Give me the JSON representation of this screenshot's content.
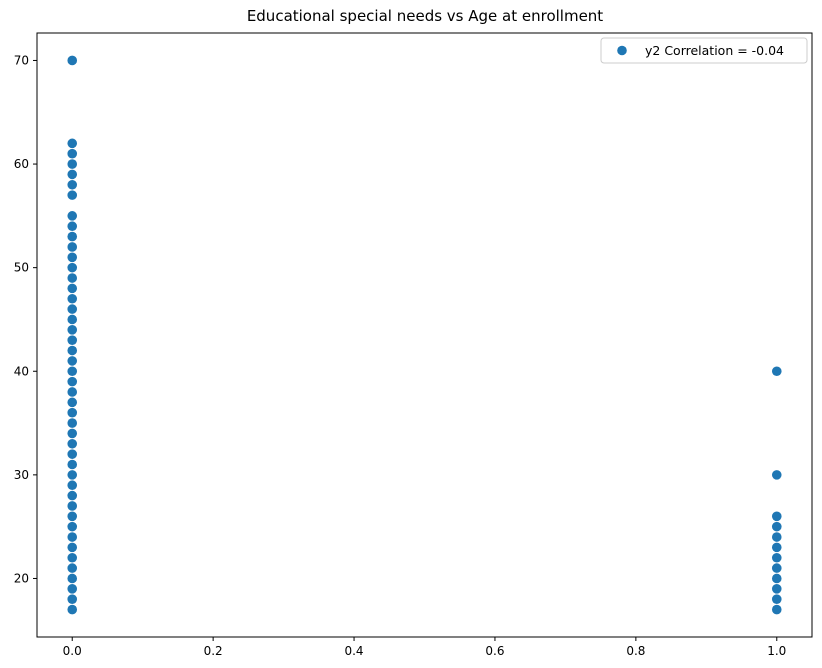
{
  "chart_data": {
    "type": "scatter",
    "title": "Educational special needs vs Age at enrollment",
    "xlabel": "",
    "ylabel": "",
    "xlim": [
      -0.05,
      1.05
    ],
    "ylim": [
      14.35,
      72.65
    ],
    "xticks": [
      0.0,
      0.2,
      0.4,
      0.6,
      0.8,
      1.0
    ],
    "xtick_labels": [
      "0.0",
      "0.2",
      "0.4",
      "0.6",
      "0.8",
      "1.0"
    ],
    "yticks": [
      20,
      30,
      40,
      50,
      60,
      70
    ],
    "ytick_labels": [
      "20",
      "30",
      "40",
      "50",
      "60",
      "70"
    ],
    "grid": false,
    "legend_position": "top-right",
    "marker_color": "#1f77b4",
    "series": [
      {
        "name": "y2 Correlation = -0.04",
        "points": [
          [
            0,
            17
          ],
          [
            0,
            18
          ],
          [
            0,
            19
          ],
          [
            0,
            20
          ],
          [
            0,
            21
          ],
          [
            0,
            22
          ],
          [
            0,
            23
          ],
          [
            0,
            24
          ],
          [
            0,
            25
          ],
          [
            0,
            26
          ],
          [
            0,
            27
          ],
          [
            0,
            28
          ],
          [
            0,
            29
          ],
          [
            0,
            30
          ],
          [
            0,
            31
          ],
          [
            0,
            32
          ],
          [
            0,
            33
          ],
          [
            0,
            34
          ],
          [
            0,
            35
          ],
          [
            0,
            36
          ],
          [
            0,
            37
          ],
          [
            0,
            38
          ],
          [
            0,
            39
          ],
          [
            0,
            40
          ],
          [
            0,
            41
          ],
          [
            0,
            42
          ],
          [
            0,
            43
          ],
          [
            0,
            44
          ],
          [
            0,
            45
          ],
          [
            0,
            46
          ],
          [
            0,
            47
          ],
          [
            0,
            48
          ],
          [
            0,
            49
          ],
          [
            0,
            50
          ],
          [
            0,
            51
          ],
          [
            0,
            52
          ],
          [
            0,
            53
          ],
          [
            0,
            54
          ],
          [
            0,
            55
          ],
          [
            0,
            57
          ],
          [
            0,
            58
          ],
          [
            0,
            59
          ],
          [
            0,
            60
          ],
          [
            0,
            61
          ],
          [
            0,
            62
          ],
          [
            0,
            70
          ],
          [
            1,
            17
          ],
          [
            1,
            18
          ],
          [
            1,
            19
          ],
          [
            1,
            20
          ],
          [
            1,
            21
          ],
          [
            1,
            22
          ],
          [
            1,
            23
          ],
          [
            1,
            24
          ],
          [
            1,
            25
          ],
          [
            1,
            26
          ],
          [
            1,
            30
          ],
          [
            1,
            40
          ]
        ]
      }
    ]
  }
}
